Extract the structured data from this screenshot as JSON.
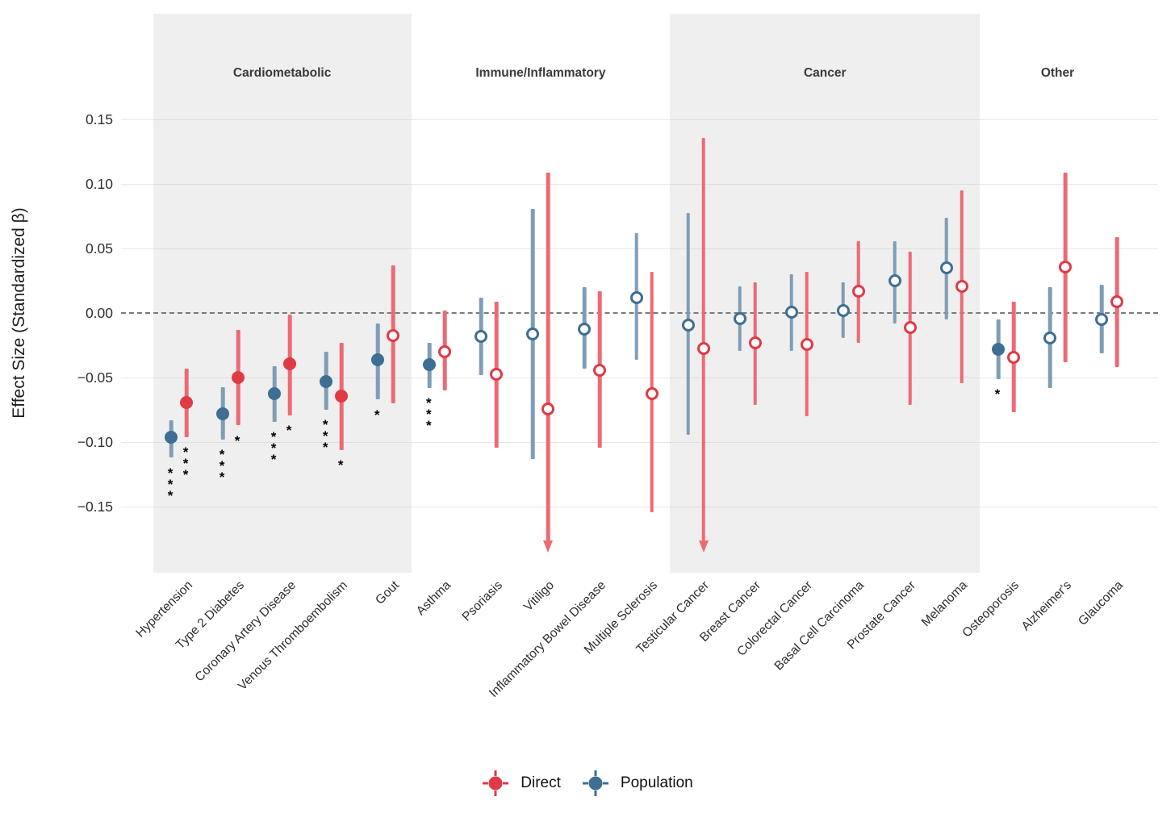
{
  "chart_data": {
    "type": "pointrange-forest",
    "ylabel": "Effect Size (Standardized β)",
    "ylim": [
      -0.19,
      0.175
    ],
    "grid": true,
    "zero_line": 0.0,
    "yticks": [
      {
        "value": 0.15,
        "label": "0.15"
      },
      {
        "value": 0.1,
        "label": "0.10"
      },
      {
        "value": 0.05,
        "label": "0.05"
      },
      {
        "value": 0.0,
        "label": "0.00"
      },
      {
        "value": -0.05,
        "label": "−0.05"
      },
      {
        "value": -0.1,
        "label": "−0.10"
      },
      {
        "value": -0.15,
        "label": "−0.15"
      }
    ],
    "legend": {
      "position": "bottom",
      "items": [
        {
          "name": "Direct",
          "color": "#e03a45"
        },
        {
          "name": "Population",
          "color": "#3e6e94"
        }
      ]
    },
    "colors": {
      "direct_point": "#e03a45",
      "direct_bar": "#ec6a74",
      "population_point": "#3e6e94",
      "population_bar": "#7e9db6",
      "band": "#efefef",
      "zero_line": "#7a7a7a",
      "sig": "#000000"
    },
    "groups": [
      {
        "name": "Cardiometabolic",
        "shaded": true,
        "diseases": [
          0,
          4
        ]
      },
      {
        "name": "Immune/Inflammatory",
        "shaded": false,
        "diseases": [
          5,
          9
        ]
      },
      {
        "name": "Cancer",
        "shaded": true,
        "diseases": [
          10,
          15
        ]
      },
      {
        "name": "Other",
        "shaded": false,
        "diseases": [
          16,
          18
        ]
      }
    ],
    "points": [
      {
        "disease": "Hypertension",
        "group": "Cardiometabolic",
        "population": {
          "est": -0.096,
          "lo": -0.112,
          "hi": -0.083,
          "sig": "***",
          "filled": true
        },
        "direct": {
          "est": -0.069,
          "lo": -0.096,
          "hi": -0.043,
          "sig": "***",
          "filled": true
        }
      },
      {
        "disease": "Type 2 Diabetes",
        "group": "Cardiometabolic",
        "population": {
          "est": -0.078,
          "lo": -0.098,
          "hi": -0.057,
          "sig": "***",
          "filled": true
        },
        "direct": {
          "est": -0.05,
          "lo": -0.087,
          "hi": -0.013,
          "sig": "*",
          "filled": true
        }
      },
      {
        "disease": "Coronary Artery Disease",
        "group": "Cardiometabolic",
        "population": {
          "est": -0.062,
          "lo": -0.084,
          "hi": -0.041,
          "sig": "***",
          "filled": true
        },
        "direct": {
          "est": -0.039,
          "lo": -0.079,
          "hi": -0.001,
          "sig": "*",
          "filled": true
        }
      },
      {
        "disease": "Venous Thromboembolism",
        "group": "Cardiometabolic",
        "population": {
          "est": -0.053,
          "lo": -0.075,
          "hi": -0.03,
          "sig": "***",
          "filled": true
        },
        "direct": {
          "est": -0.064,
          "lo": -0.106,
          "hi": -0.023,
          "sig": "*",
          "filled": true
        }
      },
      {
        "disease": "Gout",
        "group": "Cardiometabolic",
        "population": {
          "est": -0.036,
          "lo": -0.067,
          "hi": -0.008,
          "sig": "*",
          "filled": true
        },
        "direct": {
          "est": -0.017,
          "lo": -0.07,
          "hi": 0.037,
          "sig": "",
          "filled": false
        }
      },
      {
        "disease": "Asthma",
        "group": "Immune/Inflammatory",
        "population": {
          "est": -0.04,
          "lo": -0.058,
          "hi": -0.023,
          "sig": "***",
          "filled": true
        },
        "direct": {
          "est": -0.03,
          "lo": -0.06,
          "hi": 0.002,
          "sig": "",
          "filled": false
        }
      },
      {
        "disease": "Psoriasis",
        "group": "Immune/Inflammatory",
        "population": {
          "est": -0.018,
          "lo": -0.048,
          "hi": 0.012,
          "sig": "",
          "filled": false
        },
        "direct": {
          "est": -0.047,
          "lo": -0.104,
          "hi": 0.009,
          "sig": "",
          "filled": false
        }
      },
      {
        "disease": "Vitiligo",
        "group": "Immune/Inflammatory",
        "population": {
          "est": -0.016,
          "lo": -0.113,
          "hi": 0.081,
          "sig": "",
          "filled": false
        },
        "direct": {
          "est": -0.074,
          "lo": -0.183,
          "hi": 0.109,
          "sig": "",
          "filled": false,
          "arrow_down": true
        }
      },
      {
        "disease": "Inflammatory Bowel Disease",
        "group": "Immune/Inflammatory",
        "population": {
          "est": -0.012,
          "lo": -0.043,
          "hi": 0.02,
          "sig": "",
          "filled": false
        },
        "direct": {
          "est": -0.044,
          "lo": -0.104,
          "hi": 0.017,
          "sig": "",
          "filled": false
        }
      },
      {
        "disease": "Multiple Sclerosis",
        "group": "Immune/Inflammatory",
        "population": {
          "est": 0.012,
          "lo": -0.036,
          "hi": 0.062,
          "sig": "",
          "filled": false
        },
        "direct": {
          "est": -0.062,
          "lo": -0.154,
          "hi": 0.032,
          "sig": "",
          "filled": false
        }
      },
      {
        "disease": "Testicular Cancer",
        "group": "Cancer",
        "population": {
          "est": -0.009,
          "lo": -0.094,
          "hi": 0.078,
          "sig": "",
          "filled": false
        },
        "direct": {
          "est": -0.027,
          "lo": -0.183,
          "hi": 0.136,
          "sig": "",
          "filled": false,
          "arrow_down": true
        }
      },
      {
        "disease": "Breast Cancer",
        "group": "Cancer",
        "population": {
          "est": -0.004,
          "lo": -0.029,
          "hi": 0.021,
          "sig": "",
          "filled": false
        },
        "direct": {
          "est": -0.023,
          "lo": -0.071,
          "hi": 0.024,
          "sig": "",
          "filled": false
        }
      },
      {
        "disease": "Colorectal Cancer",
        "group": "Cancer",
        "population": {
          "est": 0.001,
          "lo": -0.029,
          "hi": 0.03,
          "sig": "",
          "filled": false
        },
        "direct": {
          "est": -0.024,
          "lo": -0.08,
          "hi": 0.032,
          "sig": "",
          "filled": false
        }
      },
      {
        "disease": "Basal Cell Carcinoma",
        "group": "Cancer",
        "population": {
          "est": 0.002,
          "lo": -0.019,
          "hi": 0.024,
          "sig": "",
          "filled": false
        },
        "direct": {
          "est": 0.017,
          "lo": -0.023,
          "hi": 0.056,
          "sig": "",
          "filled": false
        }
      },
      {
        "disease": "Prostate Cancer",
        "group": "Cancer",
        "population": {
          "est": 0.025,
          "lo": -0.008,
          "hi": 0.056,
          "sig": "",
          "filled": false
        },
        "direct": {
          "est": -0.011,
          "lo": -0.071,
          "hi": 0.048,
          "sig": "",
          "filled": false
        }
      },
      {
        "disease": "Melanoma",
        "group": "Cancer",
        "population": {
          "est": 0.035,
          "lo": -0.005,
          "hi": 0.074,
          "sig": "",
          "filled": false
        },
        "direct": {
          "est": 0.021,
          "lo": -0.054,
          "hi": 0.095,
          "sig": "",
          "filled": false
        }
      },
      {
        "disease": "Osteoporosis",
        "group": "Other",
        "population": {
          "est": -0.028,
          "lo": -0.051,
          "hi": -0.005,
          "sig": "*",
          "filled": true
        },
        "direct": {
          "est": -0.034,
          "lo": -0.077,
          "hi": 0.009,
          "sig": "",
          "filled": false
        }
      },
      {
        "disease": "Alzheimer's",
        "group": "Other",
        "population": {
          "est": -0.019,
          "lo": -0.058,
          "hi": 0.02,
          "sig": "",
          "filled": false
        },
        "direct": {
          "est": 0.036,
          "lo": -0.038,
          "hi": 0.109,
          "sig": "",
          "filled": false
        }
      },
      {
        "disease": "Glaucoma",
        "group": "Other",
        "population": {
          "est": -0.005,
          "lo": -0.031,
          "hi": 0.022,
          "sig": "",
          "filled": false
        },
        "direct": {
          "est": 0.009,
          "lo": -0.042,
          "hi": 0.059,
          "sig": "",
          "filled": false
        }
      }
    ]
  }
}
